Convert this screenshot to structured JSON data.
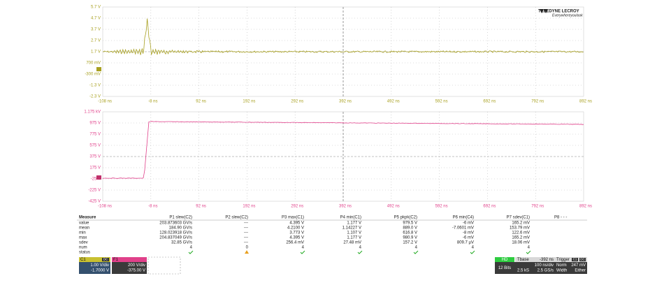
{
  "top_panel": {
    "y_labels": [
      "5.7 V",
      "4.7 V",
      "3.7 V",
      "2.7 V",
      "1.7 V",
      "700 mV",
      "-300 mV",
      "-1.3 V",
      "-2.3 V"
    ],
    "x_labels": [
      "-108 ns",
      "-8 ns",
      "92 ns",
      "192 ns",
      "292 ns",
      "392 ns",
      "492 ns",
      "592 ns",
      "692 ns",
      "792 ns",
      "892 ns"
    ]
  },
  "bottom_panel": {
    "y_labels": [
      "1.175 kV",
      "975 V",
      "775 V",
      "575 V",
      "375 V",
      "175 V",
      "-25 V",
      "-225 V",
      "-425 V"
    ],
    "x_labels": [
      "-108 ns",
      "-8 ns",
      "92 ns",
      "192 ns",
      "292 ns",
      "392 ns",
      "492 ns",
      "592 ns",
      "692 ns",
      "792 ns",
      "892 ns"
    ]
  },
  "logo": {
    "brand": "TELEDYNE LECROY",
    "tagline": "Everywhereyoulook"
  },
  "measurements": {
    "header": [
      "Measure",
      "P1 slew(C2)",
      "P2 slew(C2)",
      "P3 max(C1)",
      "P4 min(C1)",
      "P5 pkpk(C2)",
      "P6 min(C4)",
      "P7 sdev(C1)",
      "P8 - - -"
    ],
    "rows": [
      [
        "value",
        "203.873603 GV/s",
        "---",
        "4.395 V",
        "1.177 V",
        "979.5 V",
        "-6 mV",
        "165.2 mV"
      ],
      [
        "mean",
        "184.90 GV/s",
        "---",
        "4.2100 V",
        "1.14227 V",
        "889.0 V",
        "-7.0601 mV",
        "153.79 mV"
      ],
      [
        "min",
        "128.023918 GV/s",
        "---",
        "3.773 V",
        "1.107 V",
        "616.8 V",
        "-8 mV",
        "122.6 mV"
      ],
      [
        "max",
        "204.837049 GV/s",
        "---",
        "4.395 V",
        "1.177 V",
        "980.9 V",
        "-6 mV",
        "165.2 mV"
      ],
      [
        "sdev",
        "32.85 GV/s",
        "---",
        "256.4 mV",
        "27.48 mV",
        "157.2 V",
        "809.7 µV",
        "18.06 mV"
      ],
      [
        "num",
        "4",
        "0",
        "4",
        "4",
        "4",
        "4",
        "4"
      ],
      [
        "status"
      ]
    ]
  },
  "channels": [
    {
      "name": "C1",
      "coupling": "DC",
      "scale": "1.00 V/div",
      "offset": "-1.7000 V"
    },
    {
      "name": "F1",
      "scale": "200 V/div",
      "offset": "-375.00 V"
    }
  ],
  "timebase": {
    "mode": "HD",
    "bits": "12 Bits",
    "label": "Tbase",
    "delay": "-392 ns",
    "per_div": "100 ns/div",
    "samples": "2.5 kS",
    "rate": "2.5 GS/s",
    "trigger_label": "Trigger",
    "trigger_source": "C1",
    "trigger_coupling": "DC",
    "trigger_mode": "Norm",
    "trigger_level": "247 mV",
    "trigger_type": "Width",
    "trigger_slope": "Either"
  }
}
